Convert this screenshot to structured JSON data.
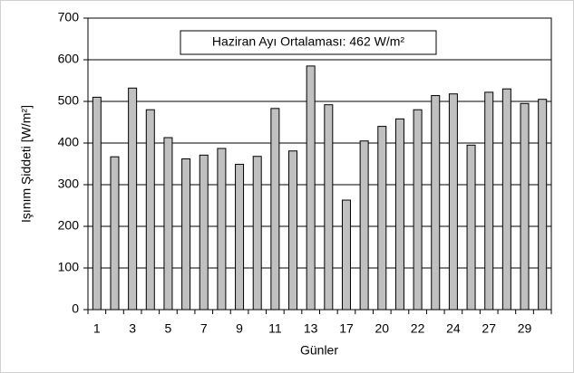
{
  "chart_data": {
    "type": "bar",
    "annotation": "Haziran Ayı Ortalaması: 462 W/m²",
    "x_label": "Günler",
    "y_label": "Işınım Şiddeti [W/m²]",
    "categories": [
      "1",
      null,
      "3",
      null,
      "5",
      null,
      "7",
      null,
      "9",
      null,
      "11",
      null,
      "13",
      null,
      "17",
      null,
      "20",
      null,
      "22",
      null,
      "24",
      null,
      "27",
      null,
      "29",
      null
    ],
    "values": [
      510,
      367,
      532,
      480,
      413,
      362,
      371,
      387,
      349,
      368,
      483,
      381,
      585,
      492,
      263,
      405,
      440,
      458,
      480,
      514,
      518,
      395,
      522,
      530,
      495,
      505
    ],
    "color": "#c0c0c0",
    "ylim": [
      0,
      700
    ],
    "yticks": [
      0,
      100,
      200,
      300,
      400,
      500,
      600,
      700
    ],
    "grid": true
  }
}
